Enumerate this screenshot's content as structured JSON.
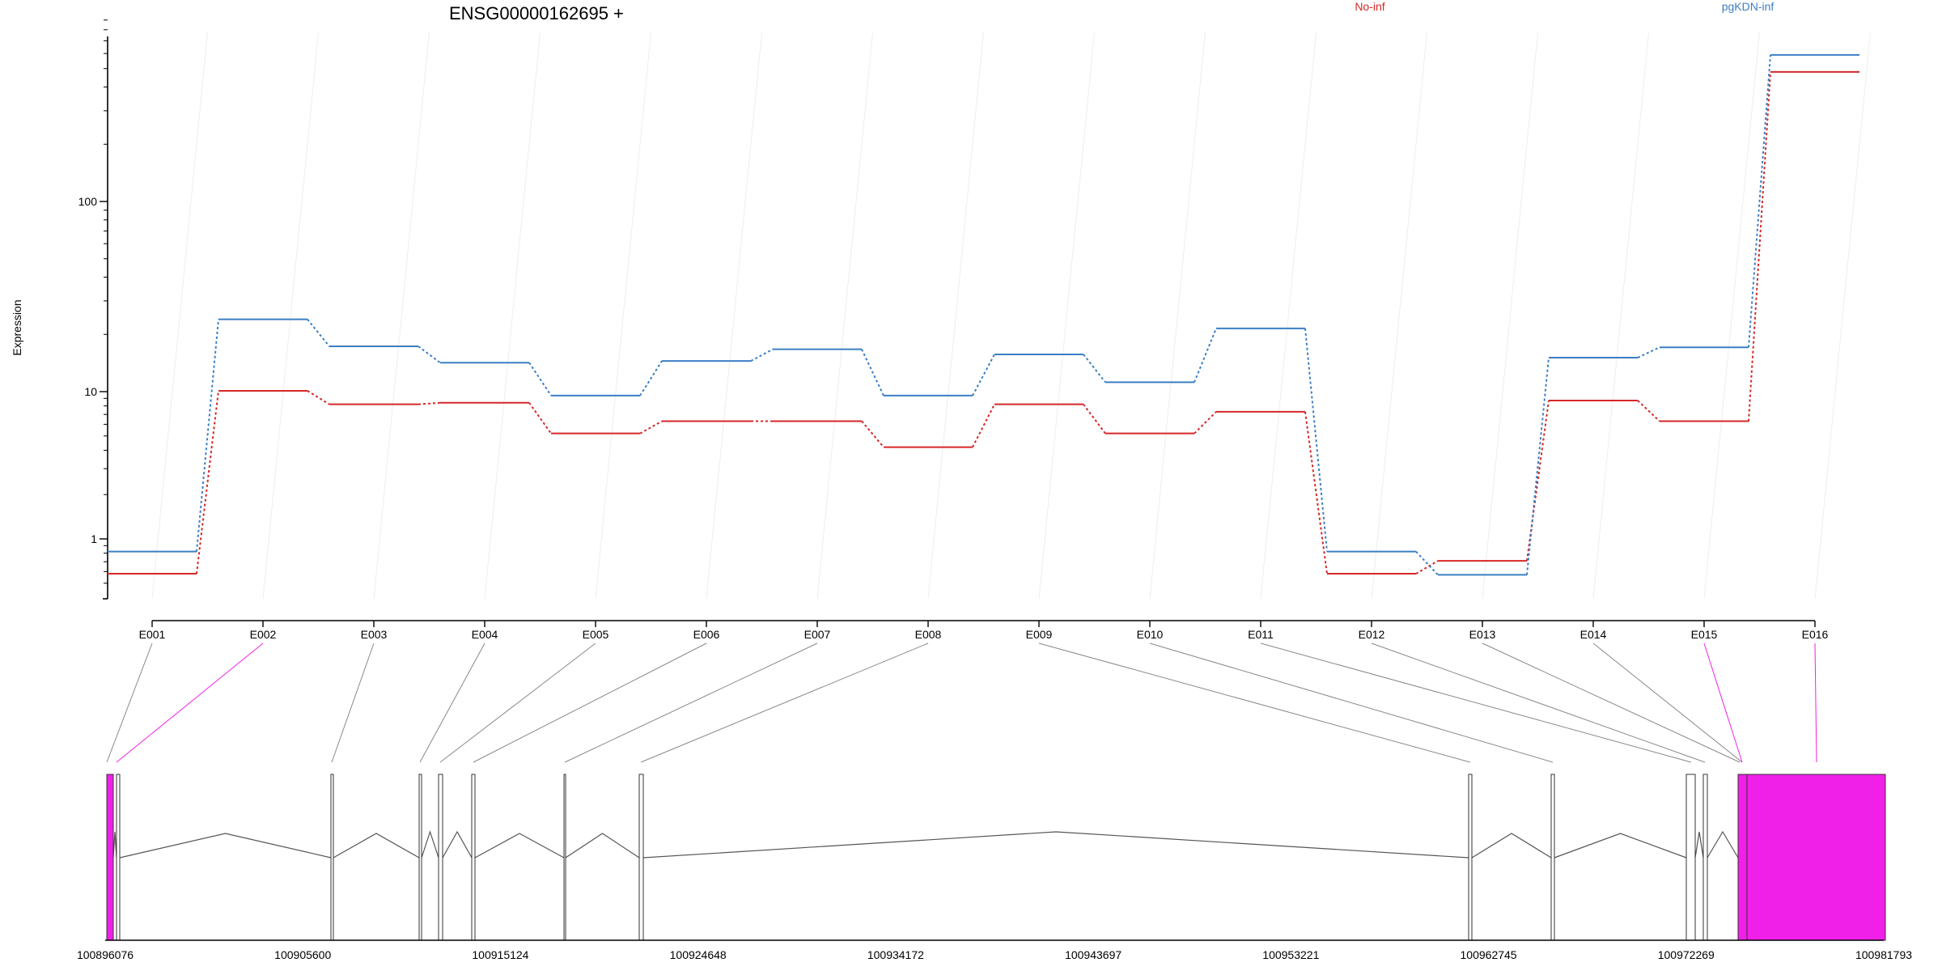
{
  "title": "ENSG00000162695 +",
  "chart_data": {
    "type": "line",
    "ylabel": "Expression",
    "yscale": "log",
    "ylim": [
      0.4,
      900
    ],
    "yticks": [
      1,
      10,
      100
    ],
    "ytick_labels": [
      "1",
      "10",
      "100"
    ],
    "categories": [
      "E001",
      "E002",
      "E003",
      "E004",
      "E005",
      "E006",
      "E007",
      "E008",
      "E009",
      "E010",
      "E011",
      "E012",
      "E013",
      "E014",
      "E015",
      "E016"
    ],
    "series": [
      {
        "name": "No-inf",
        "color": "#d62728",
        "values": [
          0.58,
          10.1,
          8.2,
          8.4,
          5.2,
          6.3,
          6.3,
          4.2,
          8.2,
          5.2,
          7.3,
          0.58,
          0.71,
          8.7,
          6.3,
          480
        ]
      },
      {
        "name": "pgKDN-inf",
        "color": "#3b7fc4",
        "values": [
          0.82,
          24.0,
          17.3,
          14.2,
          9.4,
          14.5,
          16.7,
          9.4,
          15.7,
          11.2,
          21.5,
          0.82,
          0.57,
          15.1,
          17.1,
          590
        ]
      }
    ],
    "grid": true,
    "legend": "top",
    "gene_model": {
      "axis_ticks": [
        "100896076",
        "100905600",
        "100915124",
        "100924648",
        "100934172",
        "100943697",
        "100953221",
        "100962745",
        "100972269",
        "100981793"
      ],
      "exon_highlight_color": "#f020e8",
      "highlighted_exons": [
        "E002",
        "E015",
        "E016"
      ]
    }
  }
}
